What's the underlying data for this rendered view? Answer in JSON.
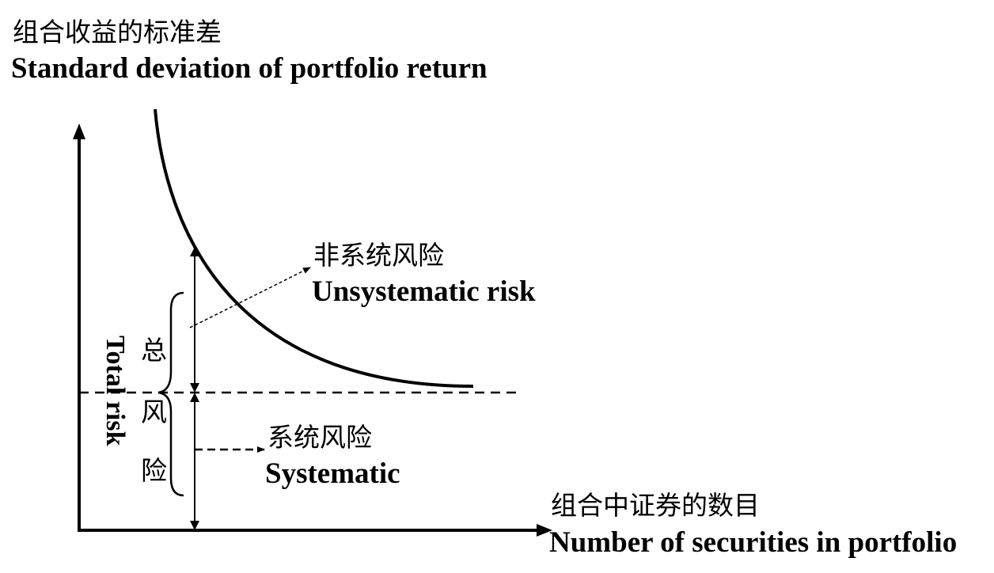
{
  "y_axis": {
    "label_cn": "组合收益的标准差",
    "label_en": "Standard deviation of portfolio return"
  },
  "x_axis": {
    "label_cn": "组合中证券的数目",
    "label_en": "Number of securities in portfolio"
  },
  "unsystematic": {
    "label_cn": "非系统风险",
    "label_en": "Unsystematic risk"
  },
  "systematic": {
    "label_cn": "系统风险",
    "label_en": "Systematic"
  },
  "total_risk": {
    "label_cn_1": "总",
    "label_cn_2": "风",
    "label_cn_3": "险",
    "label_en": "Total risk"
  },
  "colors": {
    "ink": "#000000",
    "background": "#ffffff"
  }
}
